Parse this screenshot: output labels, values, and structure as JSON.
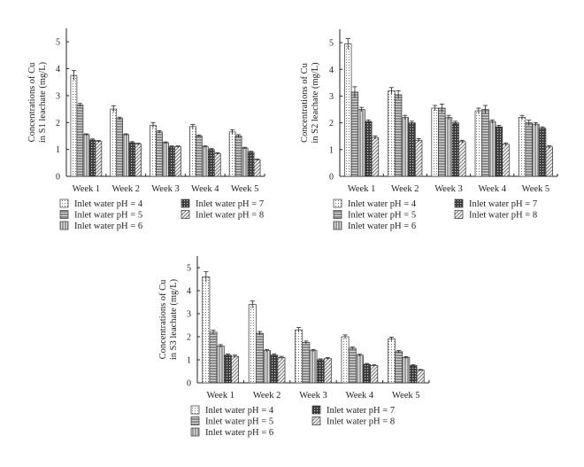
{
  "chart_data": [
    {
      "type": "bar",
      "ylabel": [
        "Concentrations of Cu",
        "in S1 leachate (mg/L)"
      ],
      "categories": [
        "Week 1",
        "Week 2",
        "Week 3",
        "Week 4",
        "Week 5"
      ],
      "ylim": [
        0,
        5.5
      ],
      "yticks": [
        0,
        1,
        2,
        3,
        4,
        5
      ],
      "grid": false,
      "legend_placement": "bottom",
      "series": [
        {
          "name": "Inlet water pH = 4",
          "pattern": "dots",
          "values": [
            3.75,
            2.5,
            1.9,
            1.85,
            1.65
          ],
          "errors": [
            0.18,
            0.12,
            0.1,
            0.08,
            0.08
          ]
        },
        {
          "name": "Inlet water pH = 5",
          "pattern": "hstripe",
          "values": [
            2.65,
            2.15,
            1.65,
            1.5,
            1.5
          ],
          "errors": [
            0.06,
            0.05,
            0.05,
            0.04,
            0.05
          ]
        },
        {
          "name": "Inlet water pH = 6",
          "pattern": "vstripe",
          "values": [
            1.55,
            1.55,
            1.25,
            1.1,
            1.05
          ],
          "errors": [
            0.03,
            0.03,
            0.03,
            0.03,
            0.03
          ]
        },
        {
          "name": "Inlet water pH = 7",
          "pattern": "grid",
          "values": [
            1.35,
            1.25,
            1.1,
            1.0,
            0.9
          ],
          "errors": [
            0.04,
            0.04,
            0.03,
            0.03,
            0.03
          ]
        },
        {
          "name": "Inlet water pH = 8",
          "pattern": "diag",
          "values": [
            1.3,
            1.2,
            1.1,
            0.85,
            0.62
          ],
          "errors": [
            0.03,
            0.03,
            0.03,
            0.03,
            0.02
          ]
        }
      ]
    },
    {
      "type": "bar",
      "ylabel": [
        "Concentrations of Cu",
        "in S2 leachate (mg/L)"
      ],
      "categories": [
        "Week 1",
        "Week 2",
        "Week 3",
        "Week 4",
        "Week 5"
      ],
      "ylim": [
        0,
        5.5
      ],
      "yticks": [
        0,
        1,
        2,
        3,
        4,
        5
      ],
      "grid": false,
      "legend_placement": "bottom",
      "series": [
        {
          "name": "Inlet water pH = 4",
          "pattern": "dots",
          "values": [
            4.95,
            3.2,
            2.55,
            2.45,
            2.2
          ],
          "errors": [
            0.2,
            0.12,
            0.1,
            0.1,
            0.08
          ]
        },
        {
          "name": "Inlet water pH = 5",
          "pattern": "hstripe",
          "values": [
            3.15,
            3.05,
            2.55,
            2.5,
            2.0
          ],
          "errors": [
            0.2,
            0.15,
            0.15,
            0.15,
            0.1
          ]
        },
        {
          "name": "Inlet water pH = 6",
          "pattern": "vstripe",
          "values": [
            2.5,
            2.2,
            2.2,
            2.05,
            1.95
          ],
          "errors": [
            0.08,
            0.08,
            0.08,
            0.06,
            0.06
          ]
        },
        {
          "name": "Inlet water pH = 7",
          "pattern": "grid",
          "values": [
            2.05,
            2.0,
            2.0,
            1.85,
            1.8
          ],
          "errors": [
            0.06,
            0.06,
            0.06,
            0.06,
            0.05
          ]
        },
        {
          "name": "Inlet water pH = 8",
          "pattern": "diag",
          "values": [
            1.45,
            1.35,
            1.3,
            1.2,
            1.1
          ],
          "errors": [
            0.06,
            0.06,
            0.05,
            0.05,
            0.05
          ]
        }
      ]
    },
    {
      "type": "bar",
      "ylabel": [
        "Concentrations of Cu",
        "in S3 leachate (mg/L)"
      ],
      "categories": [
        "Week 1",
        "Week 2",
        "Week 3",
        "Week 4",
        "Week 5"
      ],
      "ylim": [
        0,
        5.5
      ],
      "yticks": [
        0,
        1,
        2,
        3,
        4,
        5
      ],
      "grid": false,
      "legend_placement": "bottom",
      "series": [
        {
          "name": "Inlet water pH = 4",
          "pattern": "dots",
          "values": [
            4.6,
            3.4,
            2.3,
            2.0,
            1.9
          ],
          "errors": [
            0.22,
            0.15,
            0.1,
            0.08,
            0.08
          ]
        },
        {
          "name": "Inlet water pH = 5",
          "pattern": "hstripe",
          "values": [
            2.2,
            2.15,
            1.75,
            1.5,
            1.35
          ],
          "errors": [
            0.08,
            0.08,
            0.06,
            0.05,
            0.05
          ]
        },
        {
          "name": "Inlet water pH = 6",
          "pattern": "vstripe",
          "values": [
            1.6,
            1.4,
            1.4,
            1.2,
            1.1
          ],
          "errors": [
            0.06,
            0.05,
            0.05,
            0.04,
            0.04
          ]
        },
        {
          "name": "Inlet water pH = 7",
          "pattern": "grid",
          "values": [
            1.2,
            1.2,
            1.0,
            0.8,
            0.75
          ],
          "errors": [
            0.05,
            0.05,
            0.04,
            0.04,
            0.03
          ]
        },
        {
          "name": "Inlet water pH = 8",
          "pattern": "diag",
          "values": [
            1.15,
            1.1,
            1.05,
            0.75,
            0.55
          ],
          "errors": [
            0.05,
            0.05,
            0.04,
            0.03,
            0.03
          ]
        }
      ]
    }
  ]
}
